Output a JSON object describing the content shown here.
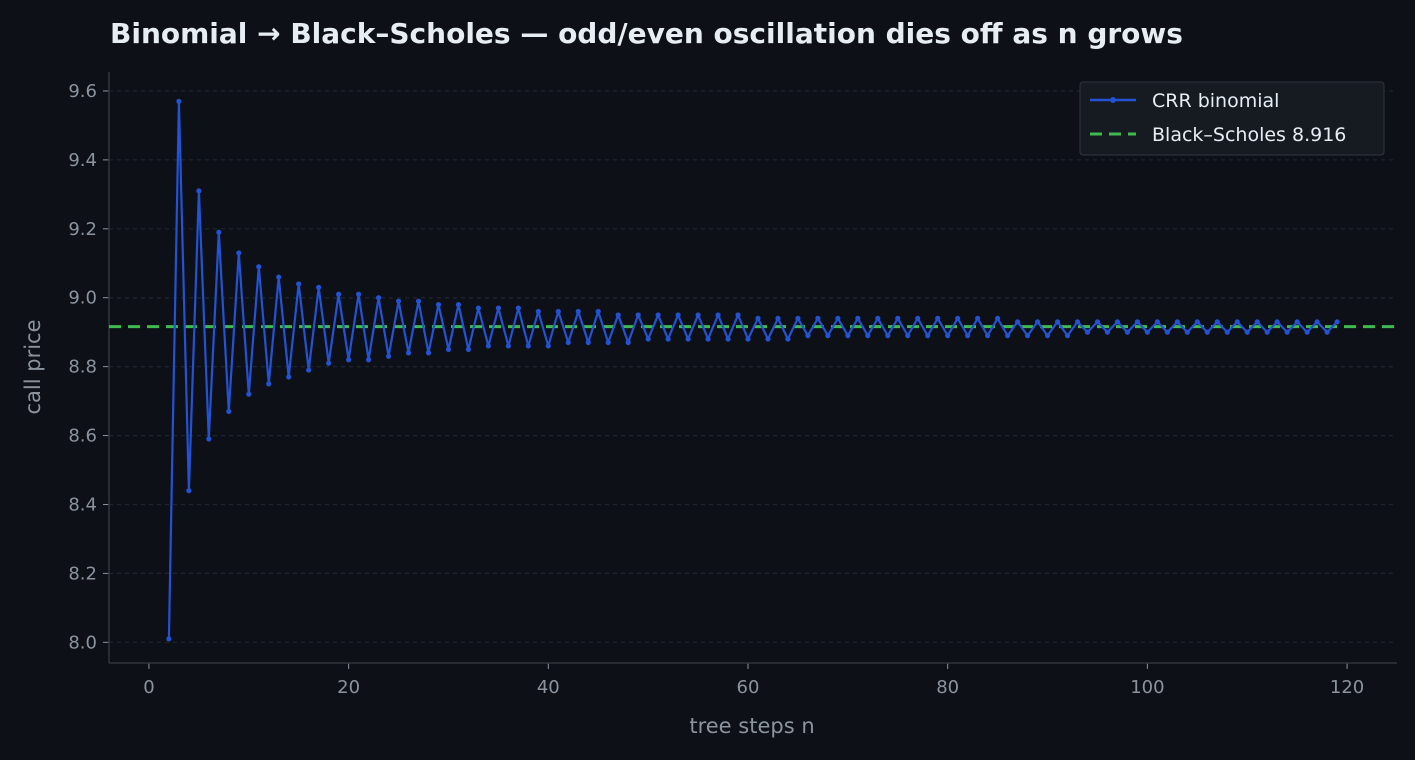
{
  "chart_data": {
    "type": "line",
    "title": "Binomial → Black–Scholes — odd/even oscillation dies off as n grows",
    "xlabel": "tree steps n",
    "ylabel": "call price",
    "xlim": [
      -4,
      125
    ],
    "ylim": [
      7.94,
      9.655
    ],
    "xticks": [
      0,
      20,
      40,
      60,
      80,
      100,
      120
    ],
    "yticks": [
      8.0,
      8.2,
      8.4,
      8.6,
      8.8,
      9.0,
      9.2,
      9.4,
      9.6
    ],
    "grid": "horizontal dashed",
    "legend_position": "top-right",
    "series": [
      {
        "name": "CRR binomial",
        "color": "#2352d2",
        "style": "line-with-markers",
        "x": [
          2,
          3,
          4,
          5,
          6,
          7,
          8,
          9,
          10,
          11,
          12,
          13,
          14,
          15,
          16,
          17,
          18,
          19,
          20,
          21,
          22,
          23,
          24,
          25,
          26,
          27,
          28,
          29,
          30,
          31,
          32,
          33,
          34,
          35,
          36,
          37,
          38,
          39,
          40,
          41,
          42,
          43,
          44,
          45,
          46,
          47,
          48,
          49,
          50,
          51,
          52,
          53,
          54,
          55,
          56,
          57,
          58,
          59,
          60,
          61,
          62,
          63,
          64,
          65,
          66,
          67,
          68,
          69,
          70,
          71,
          72,
          73,
          74,
          75,
          76,
          77,
          78,
          79,
          80,
          81,
          82,
          83,
          84,
          85,
          86,
          87,
          88,
          89,
          90,
          91,
          92,
          93,
          94,
          95,
          96,
          97,
          98,
          99,
          100,
          101,
          102,
          103,
          104,
          105,
          106,
          107,
          108,
          109,
          110,
          111,
          112,
          113,
          114,
          115,
          116,
          117,
          118,
          119
        ],
        "y": [
          8.01,
          9.57,
          8.44,
          9.31,
          8.59,
          9.19,
          8.67,
          9.13,
          8.72,
          9.09,
          8.75,
          9.06,
          8.77,
          9.04,
          8.79,
          9.03,
          8.81,
          9.01,
          8.82,
          9.01,
          8.82,
          9.0,
          8.83,
          8.99,
          8.84,
          8.99,
          8.84,
          8.98,
          8.85,
          8.98,
          8.85,
          8.97,
          8.86,
          8.97,
          8.86,
          8.97,
          8.86,
          8.96,
          8.86,
          8.96,
          8.87,
          8.96,
          8.87,
          8.96,
          8.87,
          8.95,
          8.87,
          8.95,
          8.88,
          8.95,
          8.88,
          8.95,
          8.88,
          8.95,
          8.88,
          8.95,
          8.88,
          8.95,
          8.88,
          8.94,
          8.88,
          8.94,
          8.88,
          8.94,
          8.89,
          8.94,
          8.89,
          8.94,
          8.89,
          8.94,
          8.89,
          8.94,
          8.89,
          8.94,
          8.89,
          8.94,
          8.89,
          8.94,
          8.89,
          8.94,
          8.89,
          8.94,
          8.89,
          8.94,
          8.89,
          8.93,
          8.89,
          8.93,
          8.89,
          8.93,
          8.89,
          8.93,
          8.9,
          8.93,
          8.9,
          8.93,
          8.9,
          8.93,
          8.9,
          8.93,
          8.9,
          8.93,
          8.9,
          8.93,
          8.9,
          8.93,
          8.9,
          8.93,
          8.9,
          8.93,
          8.9,
          8.93,
          8.9,
          8.93,
          8.9,
          8.93,
          8.9,
          8.93
        ]
      },
      {
        "name": "Black–Scholes 8.916",
        "color": "#3fb950",
        "style": "dashed-horizontal",
        "y_constant": 8.916
      }
    ]
  }
}
